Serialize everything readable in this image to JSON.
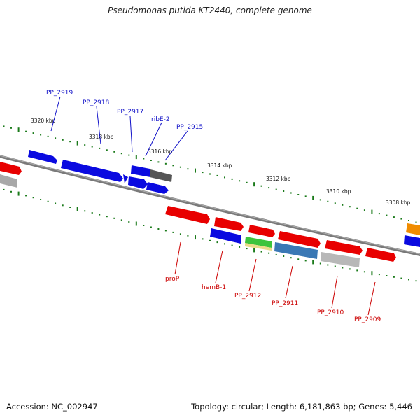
{
  "title": "Pseudomonas putida KT2440, complete genome",
  "footer": {
    "accession": "Accession: NC_002947",
    "topology": "Topology: circular; Length: 6,181,863 bp; Genes: 5,446"
  },
  "kbp_labels": [
    "3320 kbp",
    "3318 kbp",
    "3316 kbp",
    "3314 kbp",
    "3312 kbp",
    "3310 kbp",
    "3308 kbp"
  ],
  "upper_gene_labels": [
    "PP_2919",
    "PP_2918",
    "PP_2917",
    "ribE-2",
    "PP_2915"
  ],
  "lower_gene_labels": [
    "proP",
    "hemB-1",
    "PP_2912",
    "PP_2911",
    "PP_2910",
    "PP_2909"
  ],
  "colors": {
    "upper_label": "#1010c8",
    "lower_label": "#cc0000",
    "blue_gene": "#0a0ae0",
    "red_gene": "#e80000",
    "backbone": "#808080",
    "ticks": "#1a7a1a"
  }
}
